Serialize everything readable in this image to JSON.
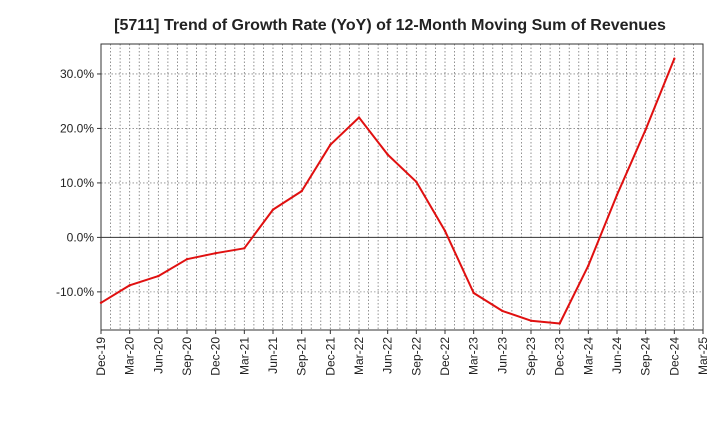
{
  "chart_data": {
    "type": "line",
    "title": "[5711]  Trend of Growth Rate (YoY) of 12-Month Moving Sum of Revenues",
    "xlabel": "",
    "ylabel": "",
    "x": [
      "Dec-19",
      "Mar-20",
      "Jun-20",
      "Sep-20",
      "Dec-20",
      "Mar-21",
      "Jun-21",
      "Sep-21",
      "Dec-21",
      "Mar-22",
      "Jun-22",
      "Sep-22",
      "Dec-22",
      "Mar-23",
      "Jun-23",
      "Sep-23",
      "Dec-23",
      "Mar-24",
      "Jun-24",
      "Sep-24",
      "Dec-24",
      "Mar-25"
    ],
    "yticks": [
      -10,
      0,
      10,
      20,
      30
    ],
    "ytick_labels": [
      "-10.0%",
      "0.0%",
      "10.0%",
      "20.0%",
      "30.0%"
    ],
    "ylim": [
      -17,
      35.5
    ],
    "grid": true,
    "series": [
      {
        "color": "#e01010",
        "values": [
          -12.0,
          -8.8,
          -7.1,
          -4.0,
          -2.9,
          -2.0,
          5.1,
          8.5,
          17.0,
          22.0,
          15.2,
          10.2,
          1.2,
          -10.2,
          -13.5,
          -15.3,
          -15.8,
          -5.2,
          7.8,
          19.8,
          32.8,
          null
        ]
      }
    ]
  }
}
